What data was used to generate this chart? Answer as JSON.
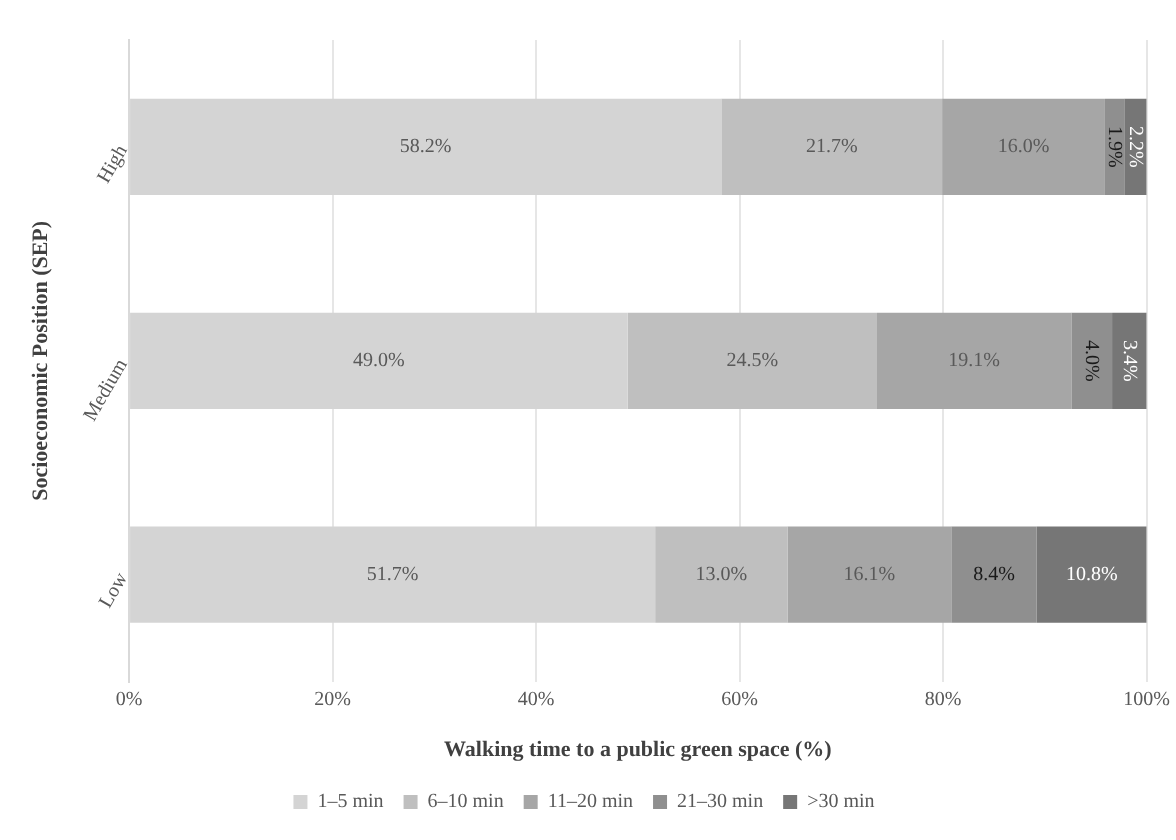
{
  "chart_data": {
    "type": "bar",
    "orientation": "horizontal",
    "stacked": true,
    "categories": [
      "High",
      "Medium",
      "Low"
    ],
    "series": [
      {
        "name": "1–5 min",
        "color": "#d4d4d4",
        "values": [
          58.2,
          49.0,
          51.7
        ]
      },
      {
        "name": "6–10 min",
        "color": "#bfbfbf",
        "values": [
          21.7,
          24.5,
          13.0
        ]
      },
      {
        "name": "11–20 min",
        "color": "#a6a6a6",
        "values": [
          16.0,
          19.1,
          16.1
        ]
      },
      {
        "name": "21–30 min",
        "color": "#8f8f8f",
        "values": [
          1.9,
          4.0,
          8.4
        ]
      },
      {
        "name": ">30 min",
        "color": "#767676",
        "values": [
          2.2,
          3.4,
          10.8
        ]
      }
    ],
    "value_labels": [
      [
        "58.2%",
        "49.0%",
        "51.7%"
      ],
      [
        "21.7%",
        "24.5%",
        "13.0%"
      ],
      [
        "16.0%",
        "19.1%",
        "16.1%"
      ],
      [
        "1.9%",
        "4.0%",
        "8.4%"
      ],
      [
        "2.2%",
        "3.4%",
        "10.8%"
      ]
    ],
    "xlim": [
      0,
      100
    ],
    "xticks": [
      {
        "value": 0,
        "label": "0%"
      },
      {
        "value": 20,
        "label": "20%"
      },
      {
        "value": 40,
        "label": "40%"
      },
      {
        "value": 60,
        "label": "60%"
      },
      {
        "value": 80,
        "label": "80%"
      },
      {
        "value": 100,
        "label": "100%"
      }
    ],
    "xlabel": "Walking time to a public green space (%)",
    "ylabel": "Socioeconomic Position (SEP)",
    "grid": "x",
    "legend": "bottom"
  }
}
